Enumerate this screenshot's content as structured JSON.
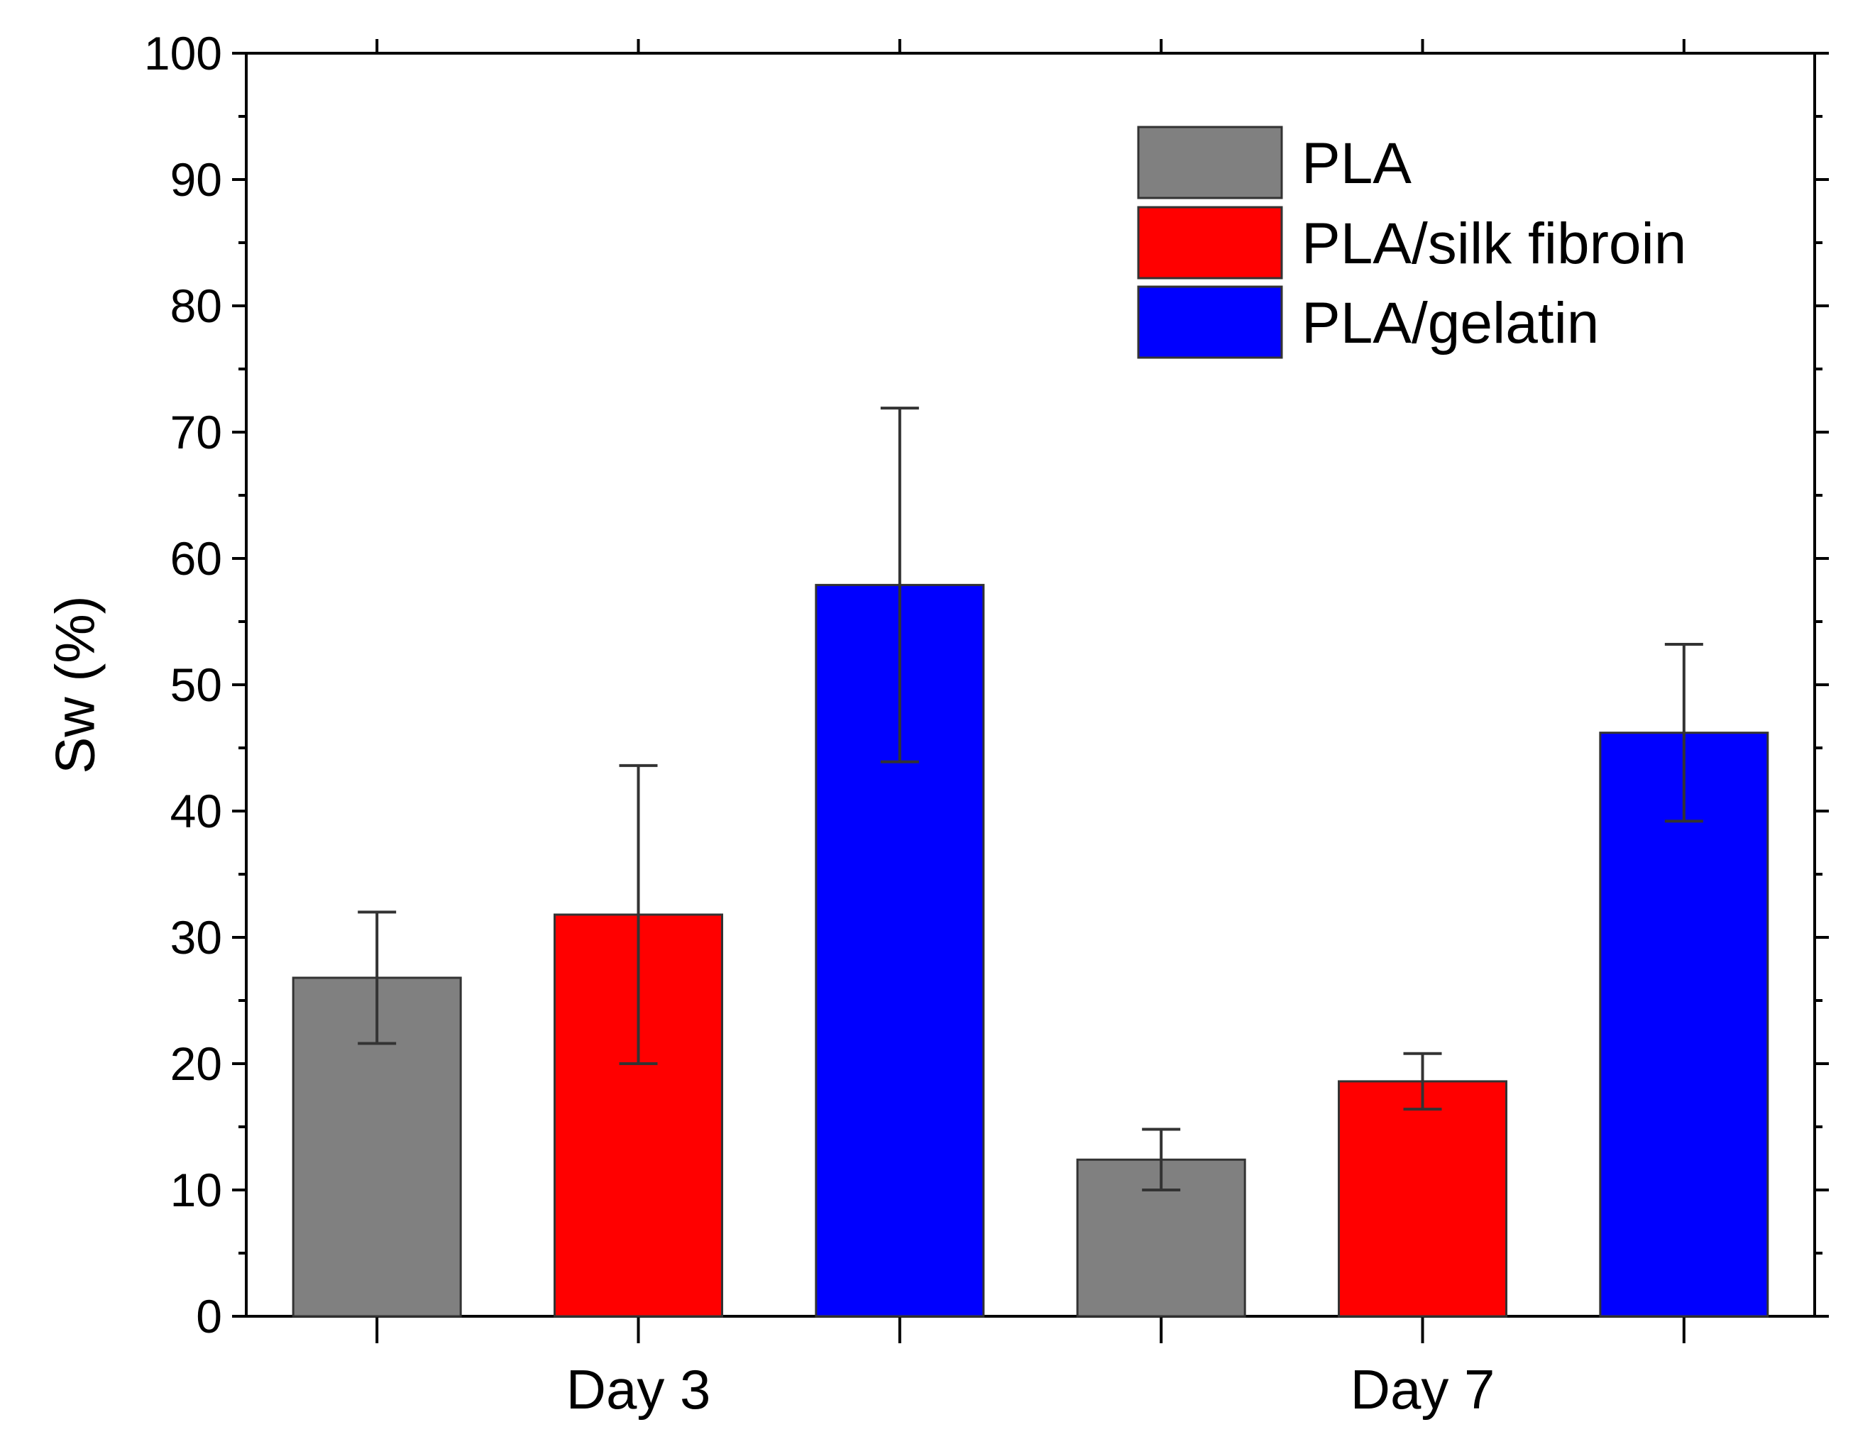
{
  "chart_data": {
    "type": "bar",
    "title": "",
    "xlabel": "",
    "ylabel": "Sw (%)",
    "ylim": [
      0,
      100
    ],
    "yticks": [
      0,
      10,
      20,
      30,
      40,
      50,
      60,
      70,
      80,
      90,
      100
    ],
    "grid": false,
    "legend_position": "top-right",
    "categories": [
      "Day 3",
      "Day 7"
    ],
    "series": [
      {
        "name": "PLA",
        "color": "#808080",
        "values": [
          26.8,
          12.4
        ],
        "errors": [
          5.2,
          2.4
        ]
      },
      {
        "name": "PLA/silk fibroin",
        "color": "#ff0000",
        "values": [
          31.8,
          18.6
        ],
        "errors": [
          11.8,
          2.2
        ]
      },
      {
        "name": "PLA/gelatin",
        "color": "#0000ff",
        "values": [
          57.9,
          46.2
        ],
        "errors": [
          14.0,
          7.0
        ]
      }
    ]
  }
}
